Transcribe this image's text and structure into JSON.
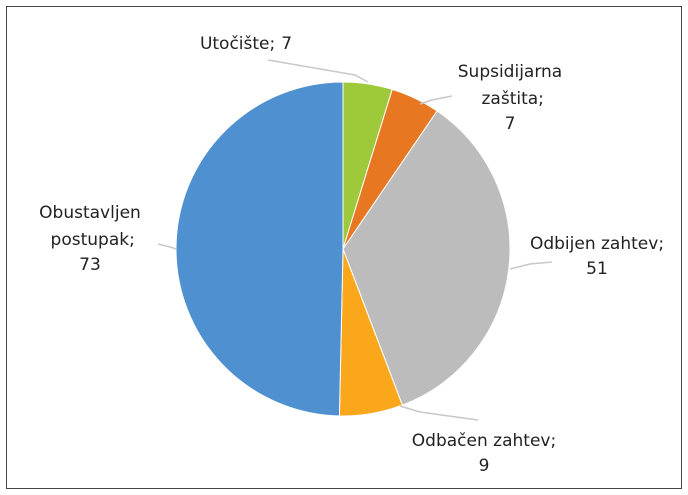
{
  "chart_data": {
    "type": "pie",
    "categories": [
      "Utočište",
      "Supsidijarna zaštita",
      "Odbijen zahtev",
      "Odbačen zahtev",
      "Obustavljen postupak"
    ],
    "values": [
      7,
      7,
      51,
      9,
      73
    ],
    "colors": [
      "#9dc93b",
      "#e87722",
      "#bcbcbc",
      "#fba71b",
      "#4e90d0"
    ],
    "label_separator": ";"
  }
}
